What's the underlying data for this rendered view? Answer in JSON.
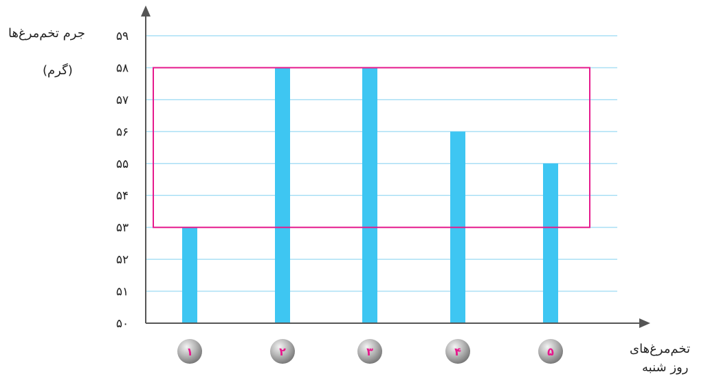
{
  "chart_data": {
    "type": "bar",
    "ylabel_lines": [
      "جرم تخم‌مرغ‌ها",
      "(گرم)"
    ],
    "xlabel_lines": [
      "تخم‌مرغ‌های",
      "روز شنبه"
    ],
    "categories": [
      "۱",
      "۲",
      "۳",
      "۴",
      "۵"
    ],
    "values": [
      53,
      58,
      58,
      56,
      55
    ],
    "ylim": [
      50,
      59
    ],
    "yticks": [
      50,
      51,
      52,
      53,
      54,
      55,
      56,
      57,
      58,
      59
    ],
    "ytick_labels": [
      "۵۰",
      "۵۱",
      "۵۲",
      "۵۳",
      "۵۴",
      "۵۵",
      "۵۶",
      "۵۷",
      "۵۸",
      "۵۹"
    ],
    "grid": true,
    "highlight_box": {
      "y_from": 53,
      "y_to": 58
    },
    "colors": {
      "bar": "#3ec6f2",
      "grid": "#a9dff5",
      "axis": "#555555",
      "highlight": "#e6188c",
      "category_number": "#e6188c"
    }
  }
}
